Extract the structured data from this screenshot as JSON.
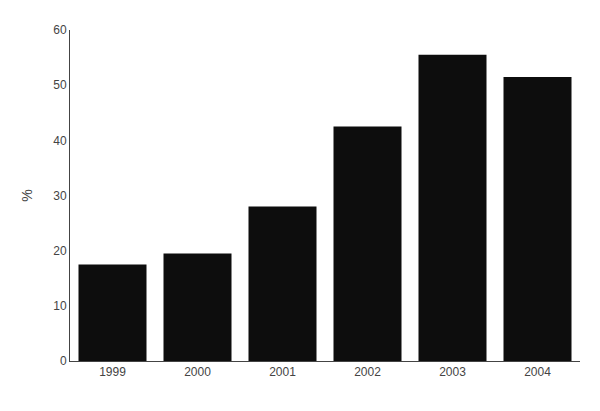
{
  "chart_data": {
    "type": "bar",
    "categories": [
      "1999",
      "2000",
      "2001",
      "2002",
      "2003",
      "2004"
    ],
    "values": [
      17.5,
      19.5,
      28.0,
      42.5,
      55.5,
      51.5
    ],
    "color": "#0d0d0d",
    "ylabel": "%",
    "ylim": [
      0,
      60
    ],
    "yticks": [
      0,
      10,
      20,
      30,
      40,
      50,
      60
    ],
    "grid": false
  }
}
